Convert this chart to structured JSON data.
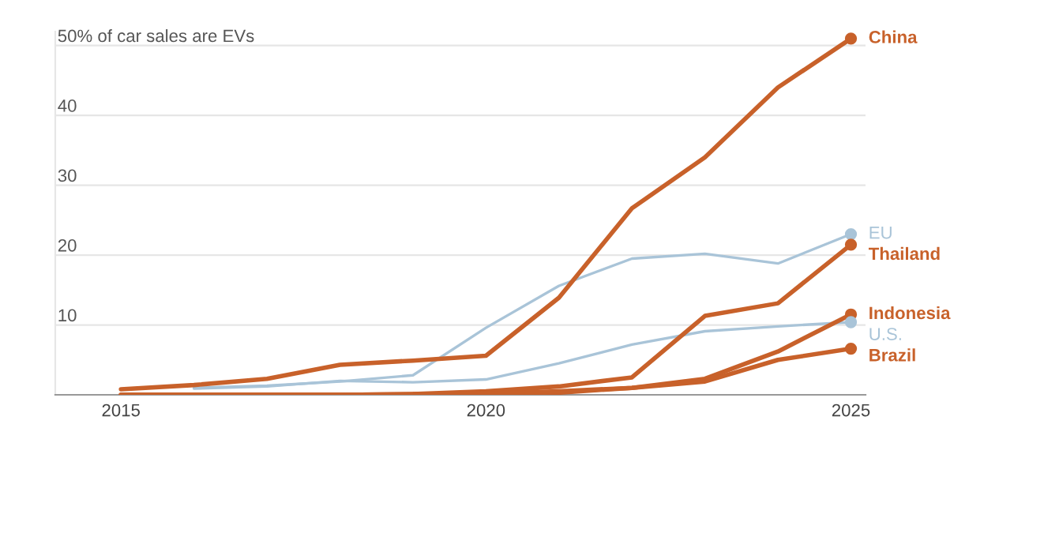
{
  "chart_data": {
    "type": "line",
    "x": [
      2015,
      2016,
      2017,
      2018,
      2019,
      2020,
      2021,
      2022,
      2023,
      2024,
      2025
    ],
    "series": [
      {
        "name": "China",
        "color": "#c8612a",
        "values": [
          0.8,
          1.4,
          2.3,
          4.3,
          4.9,
          5.6,
          13.9,
          26.7,
          34,
          44,
          51
        ]
      },
      {
        "name": "EU",
        "color": "#a9c4d8",
        "values": [
          null,
          1.0,
          1.3,
          1.9,
          2.8,
          9.6,
          15.6,
          19.5,
          20.2,
          18.8,
          23
        ]
      },
      {
        "name": "Thailand",
        "color": "#c8612a",
        "values": [
          0,
          0,
          0,
          0,
          0.1,
          0.5,
          1.2,
          2.5,
          11.3,
          13.1,
          21.5
        ]
      },
      {
        "name": "Indonesia",
        "color": "#c8612a",
        "values": [
          0,
          0,
          0,
          0,
          0,
          0.1,
          0.3,
          1.0,
          2.3,
          6.2,
          11.5
        ]
      },
      {
        "name": "U.S.",
        "color": "#a9c4d8",
        "values": [
          null,
          0.9,
          1.2,
          2.0,
          1.8,
          2.2,
          4.5,
          7.2,
          9.1,
          9.8,
          10.4
        ]
      },
      {
        "name": "Brazil",
        "color": "#c8612a",
        "values": [
          0,
          0,
          0,
          0,
          0.1,
          0.2,
          0.5,
          1.0,
          1.9,
          5.0,
          6.6
        ]
      }
    ],
    "xlim": [
      2014.1,
      2025.2
    ],
    "xticks": [
      2015,
      2020,
      2025
    ],
    "ylim": [
      0,
      52
    ],
    "yticks": [
      10,
      20,
      30,
      40,
      {
        "value": 50,
        "label": "50% of car sales are EVs"
      }
    ],
    "grid": "y"
  }
}
